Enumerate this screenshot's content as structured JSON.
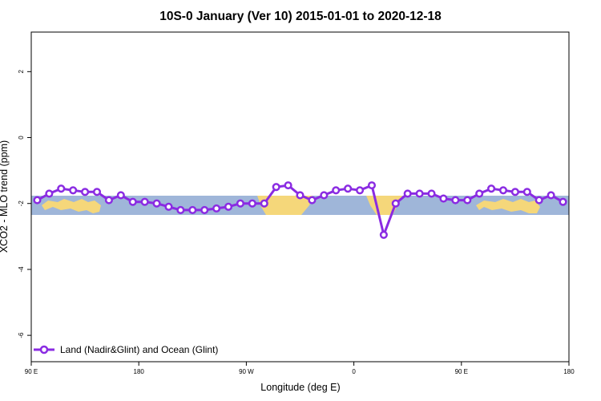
{
  "chart_data": {
    "type": "line",
    "title": "10S-0 January (Ver 10)   2015-01-01 to 2020-12-18",
    "xlabel": "Longitude (deg E)",
    "ylabel": "XCO2 - MLO trend (ppm)",
    "xlim": [
      90,
      540
    ],
    "ylim": [
      -6.8,
      3.2
    ],
    "x_ticks": [
      {
        "value": 90,
        "label": "90 E"
      },
      {
        "value": 180,
        "label": "180"
      },
      {
        "value": 270,
        "label": "90 W"
      },
      {
        "value": 360,
        "label": "0"
      },
      {
        "value": 450,
        "label": "90 E"
      },
      {
        "value": 540,
        "label": "180"
      }
    ],
    "y_ticks": [
      {
        "value": 2,
        "label": "2"
      },
      {
        "value": 0,
        "label": "0"
      },
      {
        "value": -2,
        "label": "-2"
      },
      {
        "value": -4,
        "label": "-4"
      },
      {
        "value": -6,
        "label": "-6"
      }
    ],
    "grid": false,
    "legend_position": "bottom-left",
    "background_band": {
      "ymin": -2.3,
      "ymax": -1.75,
      "ocean_color": "#9fb6d9",
      "land_color": "#f5d77a"
    },
    "series": [
      {
        "name": "Land (Nadir&Glint) and Ocean (Glint)",
        "color": "#8a2be2",
        "x": [
          95,
          105,
          115,
          125,
          135,
          145,
          155,
          165,
          175,
          185,
          195,
          205,
          215,
          225,
          235,
          245,
          255,
          265,
          275,
          285,
          295,
          305,
          315,
          325,
          335,
          345,
          355,
          365,
          375,
          385,
          395,
          405,
          415,
          425,
          435,
          445,
          455,
          465,
          475,
          485,
          495,
          505,
          515,
          525,
          535
        ],
        "y": [
          -1.9,
          -1.7,
          -1.55,
          -1.6,
          -1.65,
          -1.65,
          -1.9,
          -1.75,
          -1.95,
          -1.95,
          -2.0,
          -2.1,
          -2.2,
          -2.2,
          -2.2,
          -2.15,
          -2.1,
          -2.0,
          -2.0,
          -2.0,
          -1.5,
          -1.45,
          -1.75,
          -1.9,
          -1.75,
          -1.6,
          -1.55,
          -1.6,
          -1.45,
          -2.95,
          -2.0,
          -1.7,
          -1.7,
          -1.7,
          -1.85,
          -1.9,
          -1.9,
          -1.7,
          -1.55,
          -1.6,
          -1.65,
          -1.65,
          -1.9,
          -1.75,
          -1.95
        ]
      }
    ]
  }
}
